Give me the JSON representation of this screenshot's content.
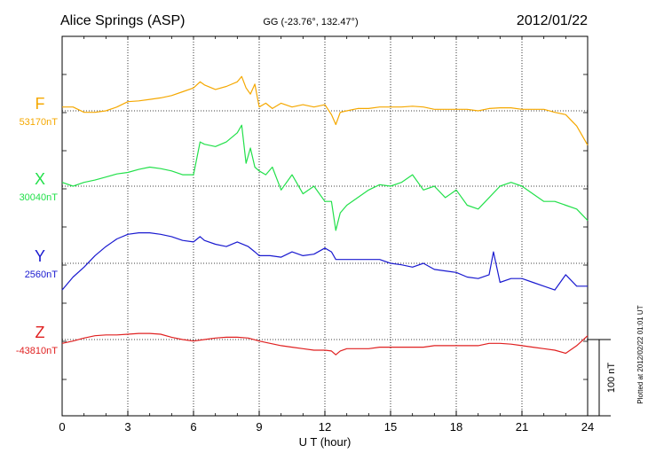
{
  "chart_data": {
    "type": "line",
    "title": "Alice Springs (ASP)",
    "coordinates_label": "GG (-23.76°, 132.47°)",
    "date": "2012/01/22",
    "xlabel": "U T (hour)",
    "xlim": [
      0,
      24
    ],
    "x_ticks": [
      "0",
      "3",
      "6",
      "9",
      "12",
      "15",
      "18",
      "21",
      "24"
    ],
    "grid": true,
    "scale_bar_label": "100 nT",
    "scale_bar_nT": 100,
    "footnote": "Plotted at 2012/02/22 01:01 UT",
    "series": [
      {
        "name": "F",
        "baseline_label": "53170nT",
        "baseline_nT": 53170,
        "color": "#f5a800",
        "x": [
          0,
          0.5,
          1,
          1.5,
          2,
          2.5,
          3,
          3.5,
          4,
          4.5,
          5,
          5.5,
          6,
          6.3,
          6.5,
          7,
          7.5,
          8,
          8.2,
          8.4,
          8.6,
          8.8,
          9,
          9.3,
          9.6,
          10,
          10.5,
          11,
          11.5,
          12,
          12.3,
          12.5,
          12.7,
          13,
          13.5,
          14,
          14.5,
          15,
          15.5,
          16,
          16.5,
          17,
          17.5,
          18,
          18.5,
          19,
          19.5,
          20,
          20.5,
          21,
          21.5,
          22,
          22.5,
          23,
          23.5,
          24
        ],
        "values": [
          5,
          5,
          -2,
          -2,
          0,
          5,
          12,
          13,
          15,
          17,
          20,
          25,
          30,
          38,
          34,
          28,
          32,
          38,
          45,
          30,
          22,
          35,
          5,
          10,
          3,
          10,
          5,
          8,
          5,
          8,
          -5,
          -18,
          -2,
          0,
          3,
          3,
          5,
          5,
          5,
          6,
          5,
          2,
          2,
          2,
          2,
          0,
          3,
          4,
          4,
          2,
          2,
          2,
          -2,
          -5,
          -20,
          -45
        ]
      },
      {
        "name": "X",
        "baseline_label": "30040nT",
        "baseline_nT": 30040,
        "color": "#22e04a",
        "x": [
          0,
          0.5,
          1,
          1.5,
          2,
          2.5,
          3,
          3.5,
          4,
          4.5,
          5,
          5.5,
          6,
          6.3,
          6.5,
          7,
          7.5,
          8,
          8.2,
          8.4,
          8.6,
          8.8,
          9,
          9.3,
          9.6,
          10,
          10.5,
          11,
          11.5,
          12,
          12.3,
          12.5,
          12.7,
          13,
          13.5,
          14,
          14.5,
          15,
          15.5,
          16,
          16.5,
          17,
          17.5,
          18,
          18.5,
          19,
          19.5,
          20,
          20.5,
          21,
          21.5,
          22,
          22.5,
          23,
          23.5,
          24
        ],
        "values": [
          5,
          0,
          5,
          8,
          12,
          16,
          18,
          22,
          25,
          23,
          20,
          15,
          15,
          58,
          55,
          52,
          58,
          70,
          80,
          30,
          50,
          25,
          20,
          15,
          25,
          -5,
          15,
          -10,
          0,
          -20,
          -20,
          -58,
          -35,
          -25,
          -15,
          -5,
          2,
          0,
          5,
          15,
          -5,
          0,
          -15,
          -5,
          -25,
          -30,
          -15,
          0,
          5,
          0,
          -10,
          -20,
          -20,
          -25,
          -30,
          -45
        ]
      },
      {
        "name": "Y",
        "baseline_label": "2560nT",
        "baseline_nT": 2560,
        "color": "#1a1ad0",
        "x": [
          0,
          0.5,
          1,
          1.5,
          2,
          2.5,
          3,
          3.5,
          4,
          4.5,
          5,
          5.5,
          6,
          6.3,
          6.5,
          7,
          7.5,
          8,
          8.5,
          8.8,
          9,
          9.5,
          10,
          10.5,
          11,
          11.5,
          12,
          12.3,
          12.5,
          12.7,
          13,
          13.5,
          14,
          14.5,
          15,
          15.5,
          16,
          16.5,
          17,
          17.5,
          18,
          18.5,
          19,
          19.5,
          19.7,
          20,
          20.5,
          21,
          21.5,
          22,
          22.5,
          23,
          23.5,
          24
        ],
        "values": [
          -35,
          -18,
          -5,
          10,
          22,
          32,
          38,
          40,
          40,
          38,
          35,
          30,
          28,
          35,
          30,
          25,
          22,
          28,
          22,
          15,
          10,
          10,
          8,
          15,
          10,
          12,
          20,
          15,
          5,
          5,
          5,
          5,
          5,
          5,
          0,
          -2,
          -5,
          0,
          -8,
          -10,
          -12,
          -18,
          -20,
          -15,
          15,
          -25,
          -20,
          -20,
          -25,
          -30,
          -35,
          -15,
          -30,
          -30
        ]
      },
      {
        "name": "Z",
        "baseline_label": "-43810nT",
        "baseline_nT": -43810,
        "color": "#e02020",
        "x": [
          0,
          0.5,
          1,
          1.5,
          2,
          2.5,
          3,
          3.5,
          4,
          4.5,
          5,
          5.5,
          6,
          6.5,
          7,
          7.5,
          8,
          8.5,
          9,
          9.5,
          10,
          10.5,
          11,
          11.5,
          12,
          12.3,
          12.5,
          12.7,
          13,
          13.5,
          14,
          14.5,
          15,
          15.5,
          16,
          16.5,
          17,
          17.5,
          18,
          18.5,
          19,
          19.5,
          20,
          20.5,
          21,
          21.5,
          22,
          22.5,
          23,
          23.5,
          24
        ],
        "values": [
          -5,
          -2,
          2,
          5,
          6,
          6,
          7,
          8,
          8,
          7,
          3,
          0,
          -2,
          0,
          2,
          3,
          3,
          2,
          -2,
          -5,
          -8,
          -10,
          -12,
          -14,
          -14,
          -15,
          -20,
          -15,
          -12,
          -12,
          -12,
          -10,
          -10,
          -10,
          -10,
          -10,
          -8,
          -8,
          -8,
          -8,
          -8,
          -5,
          -5,
          -6,
          -8,
          -10,
          -12,
          -14,
          -18,
          -8,
          5
        ]
      }
    ]
  }
}
